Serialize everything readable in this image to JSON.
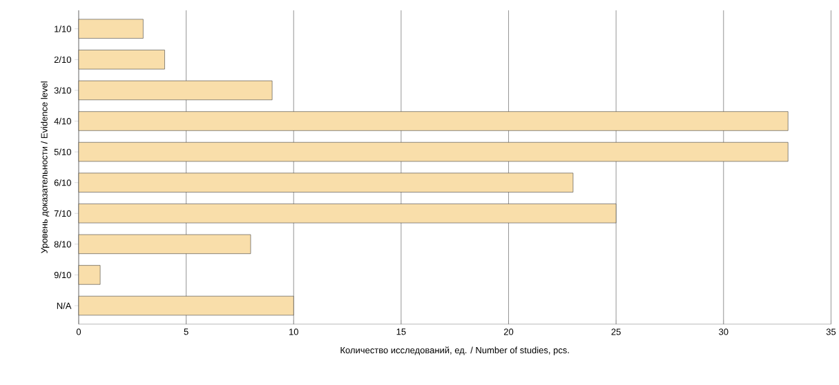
{
  "chart_data": {
    "type": "bar",
    "orientation": "horizontal",
    "xlabel": "Количество исследований, ед. / Number of studies, pcs.",
    "ylabel": "Уровень доказательности / Evidence level",
    "categories": [
      "1/10",
      "2/10",
      "3/10",
      "4/10",
      "5/10",
      "6/10",
      "7/10",
      "8/10",
      "9/10",
      "N/A"
    ],
    "values": [
      3,
      4,
      9,
      33,
      33,
      23,
      25,
      8,
      1,
      10
    ],
    "color": "#f9deaa",
    "xlim": [
      0,
      35
    ],
    "xticks": [
      0,
      5,
      10,
      15,
      20,
      25,
      30,
      35
    ],
    "grid": "x"
  }
}
